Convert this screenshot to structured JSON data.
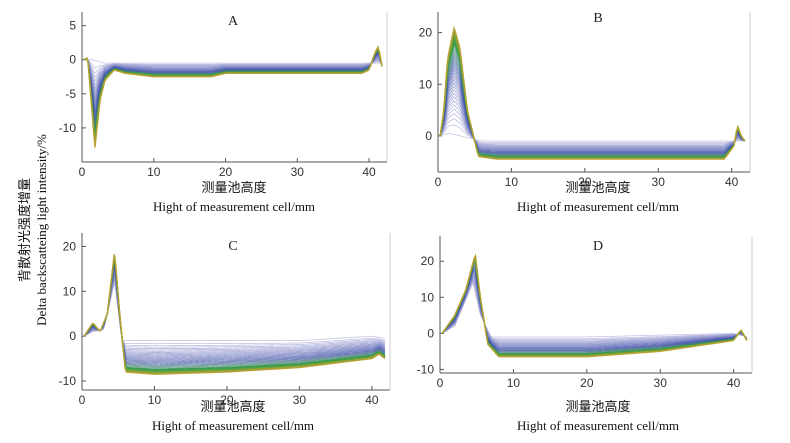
{
  "figure": {
    "ylabel_cn": "背散射光强度增量",
    "ylabel_en": "Delta backscatteing light intensity/%"
  },
  "colors": {
    "old_scan": "#a8a8d8",
    "mid_scan": "#3f4fa8",
    "green_scan": "#35a045",
    "yellow_scan": "#b8a030",
    "axis": "#555555"
  },
  "chart_data": [
    {
      "type": "line",
      "panel": "A",
      "title": "A",
      "xlabel_cn": "测量池高度",
      "xlabel": "Hight of measurement cell/mm",
      "ylabel": "背散射光强度增量 Delta backscatteing light intensity/%",
      "xlim": [
        0,
        42.5
      ],
      "ylim": [
        -15,
        7
      ],
      "xticks": [
        0,
        10,
        20,
        30,
        40
      ],
      "yticks": [
        5,
        0,
        -5,
        -10
      ],
      "series_description": "Multiple time scans; deep negative dip at x=2 falling to about -13",
      "anchors": [
        {
          "x": 0.3,
          "y": 0
        },
        {
          "x": 0.8,
          "y": 0.3
        },
        {
          "x": 1.2,
          "y": -5
        },
        {
          "x": 1.8,
          "y": -13
        },
        {
          "x": 2.5,
          "y": -6
        },
        {
          "x": 3.2,
          "y": -3
        },
        {
          "x": 4.5,
          "y": -1.5
        },
        {
          "x": 6,
          "y": -2
        },
        {
          "x": 10,
          "y": -2.5
        },
        {
          "x": 18,
          "y": -2.5
        },
        {
          "x": 20,
          "y": -2
        },
        {
          "x": 30,
          "y": -2
        },
        {
          "x": 39,
          "y": -2
        },
        {
          "x": 40,
          "y": -1.5
        },
        {
          "x": 40.8,
          "y": 1
        },
        {
          "x": 41.3,
          "y": 2
        },
        {
          "x": 41.8,
          "y": -1
        }
      ],
      "rest": [
        {
          "x": 0.3,
          "y": 0
        },
        {
          "x": 1.5,
          "y": 0
        },
        {
          "x": 3,
          "y": -0.5
        },
        {
          "x": 10,
          "y": -0.5
        },
        {
          "x": 40,
          "y": -0.5
        },
        {
          "x": 41.8,
          "y": -0.5
        }
      ]
    },
    {
      "type": "line",
      "panel": "B",
      "title": "B",
      "xlabel_cn": "测量池高度",
      "xlabel": "Hight of measurement cell/mm",
      "ylabel": "",
      "xlim": [
        0,
        42.5
      ],
      "ylim": [
        -7,
        24
      ],
      "xticks": [
        0,
        10,
        20,
        30,
        40
      ],
      "yticks": [
        20,
        10,
        0
      ],
      "series_description": "Multiple time scans; peak near x=2.5 rising to about 21",
      "anchors": [
        {
          "x": 0.3,
          "y": 0
        },
        {
          "x": 0.8,
          "y": 5
        },
        {
          "x": 1.3,
          "y": 15
        },
        {
          "x": 2.2,
          "y": 21
        },
        {
          "x": 3,
          "y": 17
        },
        {
          "x": 4,
          "y": 5
        },
        {
          "x": 5.5,
          "y": -4
        },
        {
          "x": 8,
          "y": -4.5
        },
        {
          "x": 20,
          "y": -4.5
        },
        {
          "x": 39,
          "y": -4.5
        },
        {
          "x": 40.3,
          "y": -2
        },
        {
          "x": 40.8,
          "y": 2
        },
        {
          "x": 41.3,
          "y": 0
        },
        {
          "x": 41.8,
          "y": -1
        }
      ],
      "rest": [
        {
          "x": 0.3,
          "y": 0
        },
        {
          "x": 1.5,
          "y": 0.5
        },
        {
          "x": 3,
          "y": 0
        },
        {
          "x": 6,
          "y": -1
        },
        {
          "x": 40,
          "y": -1
        },
        {
          "x": 41.8,
          "y": -1
        }
      ]
    },
    {
      "type": "line",
      "panel": "C",
      "title": "C",
      "xlabel_cn": "测量池高度",
      "xlabel": "Hight of measurement cell/mm",
      "ylabel": "",
      "xlim": [
        0,
        42.5
      ],
      "ylim": [
        -12,
        23
      ],
      "xticks": [
        0,
        10,
        20,
        30,
        40
      ],
      "yticks": [
        20,
        10,
        0,
        -10
      ],
      "series_description": "Multiple time scans; small bump near x=1.5 and sharp peak near x=4.5 rising to about 19",
      "anchors": [
        {
          "x": 0.3,
          "y": 0
        },
        {
          "x": 1.5,
          "y": 3
        },
        {
          "x": 2.5,
          "y": 1
        },
        {
          "x": 3.5,
          "y": 5
        },
        {
          "x": 4.5,
          "y": 19
        },
        {
          "x": 5.2,
          "y": 5
        },
        {
          "x": 6,
          "y": -8
        },
        {
          "x": 10,
          "y": -8.5
        },
        {
          "x": 20,
          "y": -8
        },
        {
          "x": 30,
          "y": -7
        },
        {
          "x": 40,
          "y": -5
        },
        {
          "x": 41,
          "y": -4
        },
        {
          "x": 41.8,
          "y": -5
        }
      ],
      "rest": [
        {
          "x": 0.3,
          "y": 0
        },
        {
          "x": 1.5,
          "y": 1
        },
        {
          "x": 3,
          "y": 1.5
        },
        {
          "x": 4.5,
          "y": 12
        },
        {
          "x": 5.5,
          "y": -1
        },
        {
          "x": 10,
          "y": -1
        },
        {
          "x": 30,
          "y": -1
        },
        {
          "x": 40,
          "y": 0
        },
        {
          "x": 41.8,
          "y": -0.5
        }
      ]
    },
    {
      "type": "line",
      "panel": "D",
      "title": "D",
      "xlabel_cn": "测量池高度",
      "xlabel": "Hight of measurement cell/mm",
      "ylabel": "",
      "xlim": [
        0,
        42.5
      ],
      "ylim": [
        -11,
        27
      ],
      "xticks": [
        0,
        10,
        20,
        30,
        40
      ],
      "yticks": [
        20,
        10,
        0,
        -10
      ],
      "series_description": "Multiple time scans; broad peak near x=5 rising to about 22",
      "anchors": [
        {
          "x": 0.3,
          "y": 0
        },
        {
          "x": 2,
          "y": 5
        },
        {
          "x": 3.5,
          "y": 12
        },
        {
          "x": 4.8,
          "y": 22
        },
        {
          "x": 5.5,
          "y": 10
        },
        {
          "x": 6.5,
          "y": -3
        },
        {
          "x": 8,
          "y": -6.5
        },
        {
          "x": 20,
          "y": -6.5
        },
        {
          "x": 30,
          "y": -5
        },
        {
          "x": 40,
          "y": -2
        },
        {
          "x": 41,
          "y": 1
        },
        {
          "x": 41.8,
          "y": -2
        }
      ],
      "rest": [
        {
          "x": 0.3,
          "y": 0
        },
        {
          "x": 2,
          "y": 2
        },
        {
          "x": 4.5,
          "y": 14
        },
        {
          "x": 5.5,
          "y": 5
        },
        {
          "x": 7,
          "y": -1
        },
        {
          "x": 20,
          "y": -1
        },
        {
          "x": 40,
          "y": 0
        },
        {
          "x": 41.8,
          "y": -1
        }
      ]
    }
  ]
}
